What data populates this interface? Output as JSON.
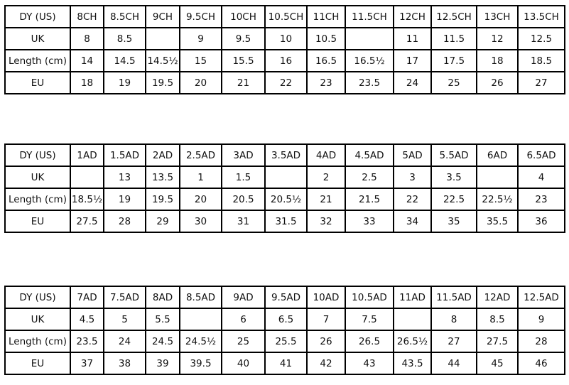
{
  "tables": [
    {
      "rows": [
        [
          "DY (US)",
          "8CH",
          "8.5CH",
          "9CH",
          "9.5CH",
          "10CH",
          "10.5CH",
          "11CH",
          "11.5CH",
          "12CH",
          "12.5CH",
          "13CH",
          "13.5CH"
        ],
        [
          "UK",
          "8",
          "8.5",
          null,
          "9",
          "9.5",
          "10",
          "10.5",
          null,
          "11",
          "11.5",
          "12",
          "12.5"
        ],
        [
          "Length (cm)",
          "14",
          "14.5",
          "14.5½",
          "15",
          "15.5",
          "16",
          "16.5",
          "16.5½",
          "17",
          "17.5",
          "18",
          "18.5"
        ],
        [
          "EU",
          "18",
          "19",
          "19.5",
          "20",
          "21",
          "22",
          "23",
          "23.5",
          "24",
          "25",
          "26",
          "27"
        ]
      ]
    },
    {
      "rows": [
        [
          "DY (US)",
          "1AD",
          "1.5AD",
          "2AD",
          "2.5AD",
          "3AD",
          "3.5AD",
          "4AD",
          "4.5AD",
          "5AD",
          "5.5AD",
          "6AD",
          "6.5AD"
        ],
        [
          "UK",
          null,
          "13",
          "13.5",
          "1",
          "1.5",
          null,
          "2",
          "2.5",
          "3",
          "3.5",
          null,
          "4"
        ],
        [
          "Length (cm)",
          "18.5½",
          "19",
          "19.5",
          "20",
          "20.5",
          "20.5½",
          "21",
          "21.5",
          "22",
          "22.5",
          "22.5½",
          "23"
        ],
        [
          "EU",
          "27.5",
          "28",
          "29",
          "30",
          "31",
          "31.5",
          "32",
          "33",
          "34",
          "35",
          "35.5",
          "36"
        ]
      ]
    },
    {
      "rows": [
        [
          "DY (US)",
          "7AD",
          "7.5AD",
          "8AD",
          "8.5AD",
          "9AD",
          "9.5AD",
          "10AD",
          "10.5AD",
          "11AD",
          "11.5AD",
          "12AD",
          "12.5AD"
        ],
        [
          "UK",
          "4.5",
          "5",
          "5.5",
          null,
          "6",
          "6.5",
          "7",
          "7.5",
          null,
          "8",
          "8.5",
          "9"
        ],
        [
          "Length (cm)",
          "23.5",
          "24",
          "24.5",
          "24.5½",
          "25",
          "25.5",
          "26",
          "26.5",
          "26.5½",
          "27",
          "27.5",
          "28"
        ],
        [
          "EU",
          "37",
          "38",
          "39",
          "39.5",
          "40",
          "41",
          "42",
          "43",
          "43.5",
          "44",
          "45",
          "46"
        ]
      ]
    }
  ]
}
